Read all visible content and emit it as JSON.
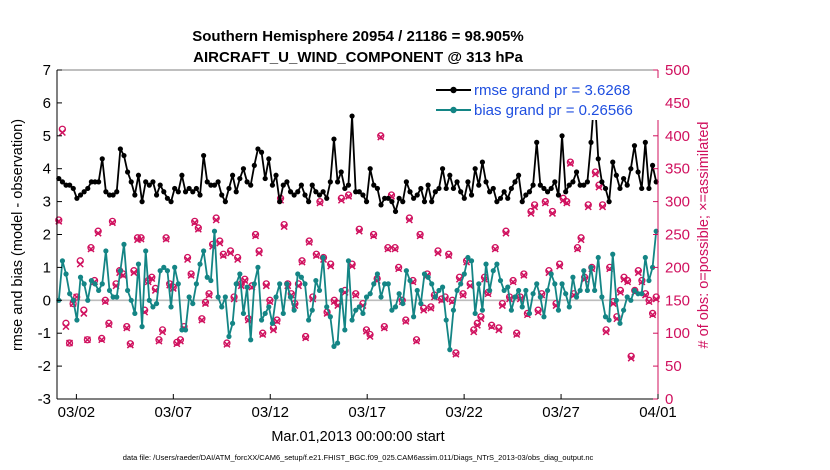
{
  "chart_data": {
    "type": "line",
    "title": "Southern Hemisphere 20954 / 21186 = 98.905%",
    "subtitle": "AIRCRAFT_U_WIND_COMPONENT @ 313 hPa",
    "xlabel": "Mar.01,2013 00:00:00 start",
    "ylabel_left": "rmse and bias (model - observation)",
    "ylabel_right": "# of obs: o=possible; ×=assimilated",
    "x_tick_labels": [
      "03/02",
      "03/07",
      "03/12",
      "03/17",
      "03/22",
      "03/27",
      "04/01"
    ],
    "x_tick_days": [
      1,
      6,
      11,
      16,
      21,
      26,
      31
    ],
    "xlim_days": [
      0,
      31
    ],
    "ylim_left": [
      -3,
      7
    ],
    "ylim_right": [
      0,
      500
    ],
    "y_ticks_left": [
      "-3",
      "-2",
      "-1",
      "0",
      "1",
      "2",
      "3",
      "4",
      "5",
      "6",
      "7"
    ],
    "y_ticks_right": [
      "0",
      "50",
      "100",
      "150",
      "200",
      "250",
      "300",
      "350",
      "400",
      "450",
      "500"
    ],
    "series": [
      {
        "name": "rmse grand pr = 3.6268",
        "color": "#000000",
        "axis": "left",
        "values": [
          3.7,
          3.6,
          3.5,
          3.5,
          3.4,
          3.1,
          3.2,
          3.3,
          3.4,
          3.6,
          3.6,
          3.6,
          4.3,
          3.3,
          3.2,
          3.2,
          3.3,
          4.6,
          4.4,
          3.9,
          3.6,
          3.2,
          3.8,
          3.0,
          3.6,
          3.5,
          3.6,
          3.2,
          3.5,
          3.3,
          3.1,
          3.0,
          3.4,
          3.3,
          3.8,
          3.3,
          3.4,
          3.3,
          3.4,
          3.2,
          4.4,
          3.6,
          3.5,
          3.5,
          3.6,
          3.2,
          3.0,
          3.4,
          3.8,
          3.3,
          3.7,
          4.0,
          3.6,
          3.5,
          4.1,
          4.6,
          4.5,
          3.7,
          4.3,
          3.5,
          3.8,
          3.0,
          3.5,
          3.6,
          3.3,
          3.2,
          3.3,
          3.5,
          3.2,
          3.0,
          3.5,
          3.3,
          3.2,
          3.3,
          3.1,
          3.6,
          4.9,
          3.6,
          3.9,
          3.4,
          3.5,
          5.6,
          3.3,
          3.3,
          3.2,
          3.0,
          4.0,
          3.5,
          3.4,
          2.9,
          3.1,
          3.1,
          3.0,
          2.7,
          3.1,
          3.0,
          3.6,
          3.3,
          3.1,
          3.2,
          3.4,
          3.0,
          3.5,
          3.0,
          3.3,
          3.4,
          4.0,
          3.4,
          3.8,
          3.4,
          3.6,
          3.3,
          3.1,
          3.6,
          3.2,
          4.0,
          3.5,
          4.2,
          3.6,
          3.3,
          3.4,
          3.0,
          3.1,
          3.3,
          3.1,
          3.4,
          3.6,
          3.8,
          3.0,
          3.2,
          3.3,
          3.5,
          4.8,
          3.5,
          3.4,
          3.3,
          3.4,
          3.6,
          3.2,
          5.0,
          3.3,
          3.5,
          3.6,
          3.9,
          3.5,
          3.5,
          3.6,
          4.8,
          6.3,
          4.3,
          3.6,
          3.4,
          3.0,
          4.2,
          3.8,
          3.4,
          3.7,
          3.5,
          4.0,
          4.7,
          3.9,
          3.4,
          4.8,
          3.4,
          4.1,
          3.6
        ]
      },
      {
        "name": "bias grand pr = 0.26566",
        "color": "#148585",
        "axis": "left",
        "values": [
          0.0,
          1.2,
          0.8,
          0.2,
          0.0,
          -0.6,
          0.7,
          0.5,
          0.0,
          0.6,
          0.5,
          0.3,
          0.5,
          1.5,
          0.3,
          0.1,
          0.1,
          0.9,
          1.7,
          0.3,
          0.0,
          -0.4,
          1.1,
          -0.8,
          1.5,
          0.0,
          -0.2,
          -0.1,
          0.9,
          1.0,
          0.9,
          -0.2,
          1.0,
          0.5,
          -0.9,
          -0.9,
          0.1,
          -0.1,
          0.5,
          1.1,
          1.5,
          0.7,
          0.6,
          2.1,
          0.1,
          -0.2,
          0.1,
          -1.1,
          -0.7,
          0.5,
          0.8,
          -0.4,
          0.4,
          -1.2,
          0.5,
          1.0,
          -0.6,
          -0.4,
          -0.2,
          -0.7,
          0.1,
          0.5,
          -0.4,
          0.5,
          0.1,
          -0.3,
          0.8,
          0.7,
          0.5,
          -0.6,
          -0.3,
          0.6,
          0.3,
          1.3,
          -0.2,
          -0.5,
          -1.4,
          -1.3,
          0.3,
          -0.9,
          1.2,
          -0.6,
          -0.3,
          -0.2,
          -0.4,
          0.1,
          0.2,
          0.5,
          0.8,
          0.1,
          0.5,
          0.5,
          -0.3,
          -0.2,
          0.2,
          -0.1,
          0.9,
          0.6,
          -0.5,
          0.3,
          -0.1,
          0.8,
          0.7,
          0.5,
          0.1,
          0.3,
          0.4,
          -0.6,
          -1.5,
          -0.3,
          0.3,
          0.5,
          0.8,
          1.3,
          1.2,
          -0.4,
          0.5,
          -0.3,
          1.1,
          0.3,
          0.9,
          1.1,
          0.6,
          0.3,
          0.4,
          -0.3,
          0.1,
          0.3,
          -0.2,
          0.3,
          -0.4,
          0.2,
          0.5,
          0.1,
          -0.5,
          0.3,
          0.8,
          0.5,
          -0.3,
          0.5,
          0.2,
          -0.2,
          0.7,
          0.1,
          0.3,
          0.9,
          0.3,
          1.0,
          0.3,
          1.3,
          0.1,
          -0.5,
          -0.6,
          1.4,
          0.0,
          -0.7,
          -0.3,
          0.1,
          0.0,
          0.3,
          0.2,
          0.2,
          1.3,
          0.6,
          1.0,
          2.1
        ]
      },
      {
        "name": "obs possible",
        "color": "#d0105e",
        "axis": "right",
        "marker": "o",
        "values": [
          272,
          410,
          115,
          85,
          145,
          155,
          210,
          135,
          90,
          230,
          180,
          255,
          92,
          150,
          115,
          270,
          175,
          195,
          190,
          110,
          84,
          195,
          245,
          245,
          135,
          180,
          185,
          168,
          90,
          105,
          245,
          175,
          170,
          86,
          90,
          110,
          215,
          190,
          270,
          260,
          122,
          147,
          160,
          235,
          275,
          240,
          220,
          85,
          225,
          155,
          215,
          175,
          182,
          122,
          172,
          250,
          225,
          100,
          175,
          150,
          108,
          120,
          305,
          265,
          175,
          160,
          145,
          175,
          210,
          95,
          240,
          155,
          220,
          300,
          215,
          132,
          205,
          150,
          145,
          305,
          165,
          310,
          205,
          160,
          258,
          145,
          105,
          98,
          250,
          183,
          400,
          110,
          230,
          310,
          230,
          200,
          150,
          120,
          275,
          180,
          90,
          250,
          138,
          190,
          140,
          158,
          225,
          152,
          155,
          220,
          150,
          70,
          185,
          160,
          210,
          175,
          105,
          115,
          125,
          185,
          162,
          112,
          230,
          108,
          145,
          255,
          155,
          180,
          100,
          155,
          190,
          130,
          285,
          295,
          135,
          160,
          300,
          195,
          285,
          145,
          205,
          305,
          300,
          360,
          160,
          230,
          245,
          185,
          295,
          200,
          345,
          325,
          295,
          105,
          200,
          148,
          125,
          165,
          185,
          180,
          65,
          165,
          195,
          180,
          160,
          150,
          130,
          155
        ]
      },
      {
        "name": "obs assimilated",
        "color": "#d0105e",
        "axis": "right",
        "marker": "x",
        "values": [
          270,
          405,
          110,
          85,
          145,
          155,
          205,
          130,
          90,
          228,
          178,
          252,
          90,
          148,
          113,
          268,
          172,
          192,
          188,
          108,
          82,
          192,
          242,
          243,
          132,
          178,
          183,
          165,
          88,
          102,
          243,
          173,
          168,
          84,
          88,
          108,
          212,
          188,
          268,
          258,
          120,
          145,
          158,
          232,
          272,
          237,
          218,
          83,
          222,
          152,
          212,
          172,
          180,
          120,
          170,
          248,
          222,
          98,
          172,
          148,
          105,
          118,
          302,
          262,
          172,
          158,
          142,
          172,
          208,
          93,
          238,
          152,
          218,
          298,
          212,
          130,
          202,
          148,
          142,
          302,
          162,
          308,
          202,
          158,
          255,
          142,
          103,
          95,
          248,
          180,
          398,
          108,
          228,
          308,
          228,
          198,
          148,
          118,
          272,
          178,
          88,
          248,
          135,
          188,
          138,
          155,
          222,
          150,
          152,
          218,
          148,
          68,
          182,
          158,
          208,
          172,
          102,
          112,
          122,
          182,
          160,
          110,
          228,
          105,
          142,
          252,
          152,
          178,
          98,
          152,
          188,
          128,
          282,
          292,
          132,
          158,
          298,
          192,
          282,
          142,
          202,
          302,
          298,
          358,
          158,
          228,
          242,
          182,
          292,
          198,
          342,
          322,
          292,
          102,
          198,
          145,
          122,
          162,
          182,
          178,
          62,
          162,
          192,
          178,
          158,
          148,
          128,
          152
        ]
      }
    ],
    "legend_placement": "top-right",
    "zero_line": true,
    "footnote": "data file: /Users/raeder/DAI/ATM_forcXX/CAM6_setup/f.e21.FHIST_BGC.f09_025.CAM6assim.011/Diags_NTrS_2013-03/obs_diag_output.nc"
  }
}
